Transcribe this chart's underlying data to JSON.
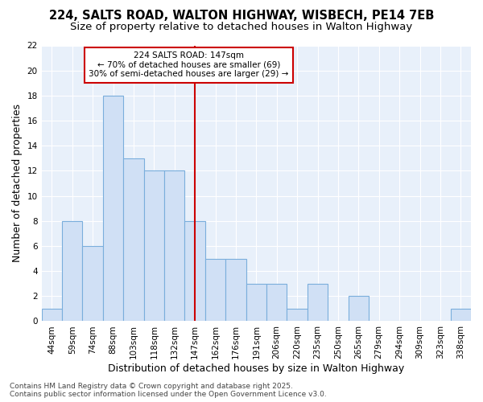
{
  "title1": "224, SALTS ROAD, WALTON HIGHWAY, WISBECH, PE14 7EB",
  "title2": "Size of property relative to detached houses in Walton Highway",
  "xlabel": "Distribution of detached houses by size in Walton Highway",
  "ylabel": "Number of detached properties",
  "categories": [
    "44sqm",
    "59sqm",
    "74sqm",
    "88sqm",
    "103sqm",
    "118sqm",
    "132sqm",
    "147sqm",
    "162sqm",
    "176sqm",
    "191sqm",
    "206sqm",
    "220sqm",
    "235sqm",
    "250sqm",
    "265sqm",
    "279sqm",
    "294sqm",
    "309sqm",
    "323sqm",
    "338sqm"
  ],
  "values": [
    1,
    8,
    6,
    18,
    13,
    12,
    12,
    8,
    5,
    5,
    3,
    3,
    1,
    3,
    0,
    2,
    0,
    0,
    0,
    0,
    1
  ],
  "bar_color": "#d0e0f5",
  "bar_edge_color": "#7aaedc",
  "vline_x_idx": 7,
  "vline_color": "#cc0000",
  "annotation_line1": "224 SALTS ROAD: 147sqm",
  "annotation_line2": "← 70% of detached houses are smaller (69)",
  "annotation_line3": "30% of semi-detached houses are larger (29) →",
  "annotation_box_color": "#ffffff",
  "annotation_box_edge": "#cc0000",
  "ylim": [
    0,
    22
  ],
  "yticks": [
    0,
    2,
    4,
    6,
    8,
    10,
    12,
    14,
    16,
    18,
    20,
    22
  ],
  "fig_bg_color": "#ffffff",
  "axes_bg_color": "#e8f0fa",
  "grid_color": "#ffffff",
  "footer": "Contains HM Land Registry data © Crown copyright and database right 2025.\nContains public sector information licensed under the Open Government Licence v3.0.",
  "title_fontsize": 10.5,
  "subtitle_fontsize": 9.5,
  "tick_fontsize": 7.5,
  "label_fontsize": 9,
  "footer_fontsize": 6.5
}
